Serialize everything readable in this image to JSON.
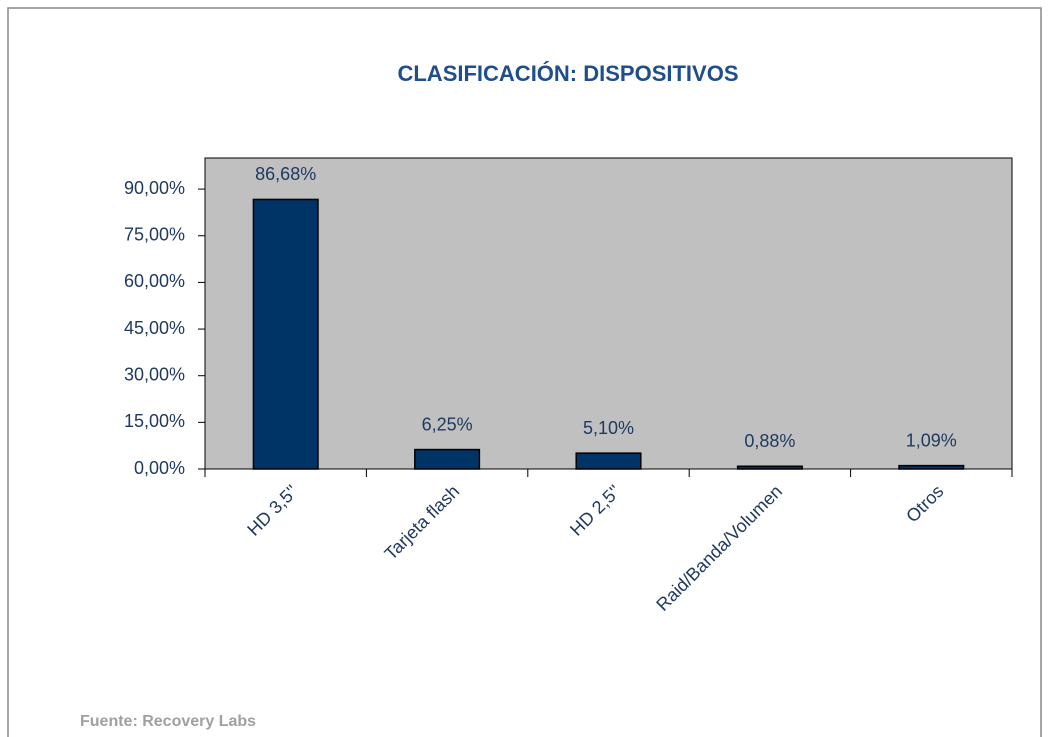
{
  "chart_data": {
    "type": "bar",
    "title": "CLASIFICACIÓN: DISPOSITIVOS",
    "categories": [
      "HD 3,5''",
      "Tarjeta flash",
      "HD 2,5''",
      "Raid/Banda/Volumen",
      "Otros"
    ],
    "values": [
      86.68,
      6.25,
      5.1,
      0.88,
      1.09
    ],
    "value_labels": [
      "86,68%",
      "6,25%",
      "5,10%",
      "0,88%",
      "1,09%"
    ],
    "color": "#003366",
    "plot_background": "#c0c0c0",
    "ylim": [
      0,
      100
    ],
    "yticks": [
      {
        "value": 0,
        "label": "0,00%"
      },
      {
        "value": 15,
        "label": "15,00%"
      },
      {
        "value": 30,
        "label": "30,00%"
      },
      {
        "value": 45,
        "label": "45,00%"
      },
      {
        "value": 60,
        "label": "60,00%"
      },
      {
        "value": 75,
        "label": "75,00%"
      },
      {
        "value": 90,
        "label": "90,00%"
      }
    ],
    "source": "Fuente: Recovery Labs"
  }
}
